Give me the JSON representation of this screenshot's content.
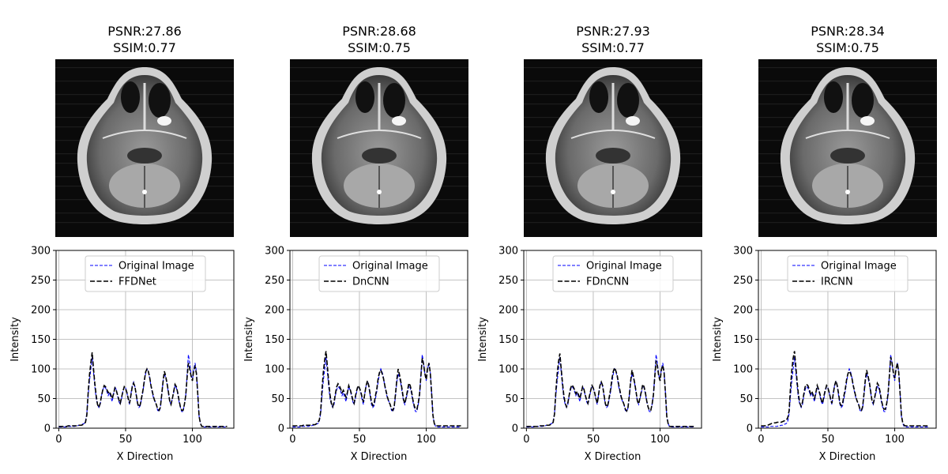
{
  "chart_data": [
    {
      "type": "line",
      "title_line1": "PSNR:27.86",
      "title_line2": "SSIM:0.77",
      "xlabel": "X Direction",
      "ylabel": "Intensity",
      "xlim": [
        -2,
        131
      ],
      "ylim": [
        0,
        300
      ],
      "xticks": [
        "0",
        "50",
        "100"
      ],
      "yticks": [
        "0",
        "50",
        "100",
        "150",
        "200",
        "250",
        "300"
      ],
      "grid": true,
      "legend": "upper center",
      "series": [
        {
          "name": "Original Image",
          "color": "#0000ff",
          "dash": "short",
          "y": [
            2,
            2,
            2,
            2,
            2,
            2,
            2,
            3,
            3,
            3,
            3,
            3,
            3,
            4,
            4,
            5,
            5,
            6,
            7,
            8,
            12,
            25,
            55,
            80,
            100,
            120,
            95,
            70,
            50,
            40,
            35,
            40,
            55,
            65,
            70,
            68,
            62,
            55,
            60,
            52,
            45,
            58,
            70,
            65,
            55,
            45,
            40,
            50,
            62,
            70,
            68,
            60,
            48,
            40,
            58,
            72,
            78,
            70,
            55,
            40,
            35,
            38,
            50,
            62,
            78,
            92,
            100,
            95,
            85,
            70,
            60,
            50,
            45,
            40,
            30,
            28,
            34,
            55,
            78,
            92,
            85,
            75,
            60,
            45,
            40,
            50,
            60,
            72,
            68,
            58,
            45,
            35,
            28,
            28,
            40,
            55,
            90,
            124,
            110,
            90,
            80,
            100,
            110,
            95,
            60,
            20,
            8,
            3,
            2,
            2,
            2,
            2,
            2,
            2,
            2,
            2,
            2,
            2,
            2,
            2,
            2,
            2,
            2,
            2,
            2,
            2,
            2
          ]
        },
        {
          "name": "FFDNet",
          "color": "#000000",
          "dash": "long",
          "y": [
            3,
            3,
            3,
            3,
            3,
            3,
            3,
            4,
            4,
            4,
            4,
            4,
            4,
            4,
            4,
            5,
            5,
            5,
            6,
            7,
            10,
            22,
            60,
            90,
            110,
            128,
            100,
            75,
            55,
            40,
            35,
            42,
            55,
            65,
            72,
            70,
            65,
            60,
            62,
            56,
            50,
            58,
            68,
            64,
            56,
            48,
            42,
            52,
            62,
            70,
            67,
            60,
            50,
            42,
            56,
            70,
            76,
            70,
            56,
            42,
            36,
            40,
            52,
            64,
            80,
            95,
            100,
            96,
            86,
            72,
            62,
            52,
            45,
            40,
            32,
            30,
            35,
            56,
            78,
            96,
            88,
            76,
            62,
            46,
            40,
            50,
            62,
            74,
            70,
            60,
            47,
            36,
            30,
            30,
            40,
            55,
            85,
            110,
            100,
            88,
            80,
            98,
            104,
            92,
            58,
            20,
            8,
            3,
            3,
            3,
            3,
            3,
            3,
            3,
            3,
            3,
            3,
            3,
            3,
            3,
            3,
            3,
            3,
            3,
            3,
            3,
            3
          ]
        }
      ]
    },
    {
      "type": "line",
      "title_line1": "PSNR:28.68",
      "title_line2": "SSIM:0.75",
      "xlabel": "X Direction",
      "ylabel": "Intensity",
      "xlim": [
        -2,
        131
      ],
      "ylim": [
        0,
        300
      ],
      "xticks": [
        "0",
        "50",
        "100"
      ],
      "yticks": [
        "0",
        "50",
        "100",
        "150",
        "200",
        "250",
        "300"
      ],
      "grid": true,
      "legend": "upper center",
      "series": [
        {
          "name": "Original Image",
          "color": "#0000ff",
          "dash": "short",
          "y": [
            2,
            2,
            2,
            2,
            2,
            2,
            2,
            3,
            3,
            3,
            3,
            3,
            3,
            4,
            4,
            5,
            5,
            6,
            7,
            8,
            12,
            25,
            55,
            80,
            100,
            120,
            95,
            70,
            50,
            40,
            35,
            40,
            55,
            65,
            70,
            68,
            62,
            55,
            60,
            52,
            45,
            58,
            70,
            65,
            55,
            45,
            40,
            50,
            62,
            70,
            68,
            60,
            48,
            40,
            58,
            72,
            78,
            70,
            55,
            40,
            35,
            38,
            50,
            62,
            78,
            92,
            100,
            95,
            85,
            70,
            60,
            50,
            45,
            40,
            30,
            28,
            34,
            55,
            78,
            92,
            85,
            75,
            60,
            45,
            40,
            50,
            60,
            72,
            68,
            58,
            45,
            35,
            28,
            28,
            40,
            55,
            90,
            124,
            110,
            90,
            80,
            100,
            110,
            95,
            60,
            20,
            8,
            3,
            2,
            2,
            2,
            2,
            2,
            2,
            2,
            2,
            2,
            2,
            2,
            2,
            2,
            2,
            2,
            2,
            2,
            2,
            2
          ]
        },
        {
          "name": "DnCNN",
          "color": "#000000",
          "dash": "long",
          "y": [
            4,
            4,
            4,
            4,
            4,
            4,
            4,
            4,
            5,
            5,
            5,
            5,
            5,
            5,
            5,
            6,
            6,
            6,
            8,
            10,
            14,
            28,
            65,
            95,
            115,
            130,
            105,
            78,
            56,
            42,
            36,
            44,
            58,
            70,
            75,
            72,
            66,
            60,
            64,
            58,
            52,
            60,
            72,
            66,
            58,
            48,
            42,
            54,
            64,
            72,
            68,
            62,
            52,
            44,
            58,
            72,
            80,
            72,
            58,
            44,
            38,
            42,
            55,
            66,
            84,
            94,
            98,
            92,
            84,
            72,
            62,
            52,
            45,
            40,
            32,
            30,
            36,
            58,
            82,
            100,
            90,
            78,
            64,
            48,
            42,
            52,
            64,
            76,
            72,
            62,
            48,
            38,
            32,
            32,
            42,
            58,
            88,
            118,
            108,
            92,
            82,
            100,
            110,
            94,
            60,
            22,
            8,
            4,
            4,
            4,
            4,
            4,
            4,
            4,
            4,
            4,
            4,
            4,
            4,
            4,
            4,
            4,
            4,
            4,
            4,
            4,
            4
          ]
        }
      ]
    },
    {
      "type": "line",
      "title_line1": "PSNR:27.93",
      "title_line2": "SSIM:0.77",
      "xlabel": "X Direction",
      "ylabel": "Intensity",
      "xlim": [
        -2,
        131
      ],
      "ylim": [
        0,
        300
      ],
      "xticks": [
        "0",
        "50",
        "100"
      ],
      "yticks": [
        "0",
        "50",
        "100",
        "150",
        "200",
        "250",
        "300"
      ],
      "grid": true,
      "legend": "upper center",
      "series": [
        {
          "name": "Original Image",
          "color": "#0000ff",
          "dash": "short",
          "y": [
            2,
            2,
            2,
            2,
            2,
            2,
            2,
            3,
            3,
            3,
            3,
            3,
            3,
            4,
            4,
            5,
            5,
            6,
            7,
            8,
            12,
            25,
            55,
            80,
            100,
            120,
            95,
            70,
            50,
            40,
            35,
            40,
            55,
            65,
            70,
            68,
            62,
            55,
            60,
            52,
            45,
            58,
            70,
            65,
            55,
            45,
            40,
            50,
            62,
            70,
            68,
            60,
            48,
            40,
            58,
            72,
            78,
            70,
            55,
            40,
            35,
            38,
            50,
            62,
            78,
            92,
            100,
            95,
            85,
            70,
            60,
            50,
            45,
            40,
            30,
            28,
            34,
            55,
            78,
            92,
            85,
            75,
            60,
            45,
            40,
            50,
            60,
            72,
            68,
            58,
            45,
            35,
            28,
            28,
            40,
            55,
            90,
            124,
            110,
            90,
            80,
            100,
            110,
            95,
            60,
            20,
            8,
            3,
            2,
            2,
            2,
            2,
            2,
            2,
            2,
            2,
            2,
            2,
            2,
            2,
            2,
            2,
            2,
            2,
            2,
            2,
            2
          ]
        },
        {
          "name": "FDnCNN",
          "color": "#000000",
          "dash": "long",
          "y": [
            3,
            3,
            3,
            3,
            3,
            3,
            3,
            3,
            3,
            3,
            4,
            4,
            4,
            4,
            4,
            5,
            5,
            5,
            6,
            7,
            10,
            24,
            62,
            92,
            112,
            126,
            100,
            76,
            55,
            42,
            36,
            43,
            56,
            67,
            73,
            70,
            65,
            58,
            62,
            56,
            50,
            60,
            70,
            66,
            56,
            48,
            42,
            53,
            63,
            72,
            68,
            60,
            50,
            42,
            57,
            72,
            78,
            72,
            57,
            42,
            36,
            40,
            53,
            66,
            84,
            96,
            102,
            96,
            88,
            74,
            63,
            52,
            46,
            40,
            32,
            29,
            35,
            56,
            80,
            98,
            88,
            76,
            62,
            46,
            41,
            52,
            62,
            74,
            70,
            60,
            46,
            36,
            30,
            30,
            40,
            56,
            86,
            114,
            104,
            88,
            80,
            99,
            106,
            94,
            60,
            20,
            8,
            3,
            3,
            3,
            3,
            3,
            3,
            3,
            3,
            3,
            3,
            3,
            3,
            3,
            3,
            3,
            3,
            3,
            3,
            3,
            3
          ]
        }
      ]
    },
    {
      "type": "line",
      "title_line1": "PSNR:28.34",
      "title_line2": "SSIM:0.75",
      "xlabel": "X Direction",
      "ylabel": "Intensity",
      "xlim": [
        -2,
        131
      ],
      "ylim": [
        0,
        300
      ],
      "xticks": [
        "0",
        "50",
        "100"
      ],
      "yticks": [
        "0",
        "50",
        "100",
        "150",
        "200",
        "250",
        "300"
      ],
      "grid": true,
      "legend": "upper center",
      "series": [
        {
          "name": "Original Image",
          "color": "#0000ff",
          "dash": "short",
          "y": [
            2,
            2,
            2,
            2,
            2,
            2,
            2,
            3,
            3,
            3,
            3,
            3,
            3,
            4,
            4,
            5,
            5,
            6,
            7,
            8,
            12,
            25,
            55,
            80,
            100,
            120,
            95,
            70,
            50,
            40,
            35,
            40,
            55,
            65,
            70,
            68,
            62,
            55,
            60,
            52,
            45,
            58,
            70,
            65,
            55,
            45,
            40,
            50,
            62,
            70,
            68,
            60,
            48,
            40,
            58,
            72,
            78,
            70,
            55,
            40,
            35,
            38,
            50,
            62,
            78,
            92,
            100,
            95,
            85,
            70,
            60,
            50,
            45,
            40,
            30,
            28,
            34,
            55,
            78,
            92,
            85,
            75,
            60,
            45,
            40,
            50,
            60,
            72,
            68,
            58,
            45,
            35,
            28,
            28,
            40,
            55,
            90,
            124,
            110,
            90,
            80,
            100,
            110,
            95,
            60,
            20,
            8,
            3,
            2,
            2,
            2,
            2,
            2,
            2,
            2,
            2,
            2,
            2,
            2,
            2,
            2,
            2,
            2,
            2,
            2,
            2,
            2
          ]
        },
        {
          "name": "IRCNN",
          "color": "#000000",
          "dash": "long",
          "y": [
            4,
            4,
            4,
            4,
            5,
            5,
            6,
            7,
            8,
            8,
            9,
            9,
            10,
            10,
            10,
            10,
            11,
            12,
            13,
            14,
            18,
            30,
            68,
            98,
            118,
            130,
            104,
            78,
            56,
            42,
            37,
            44,
            58,
            70,
            74,
            72,
            66,
            58,
            62,
            56,
            50,
            60,
            72,
            66,
            58,
            48,
            42,
            54,
            64,
            72,
            68,
            60,
            50,
            42,
            58,
            72,
            80,
            72,
            58,
            42,
            38,
            42,
            55,
            66,
            82,
            92,
            96,
            92,
            84,
            72,
            62,
            52,
            45,
            40,
            32,
            30,
            36,
            58,
            82,
            98,
            88,
            78,
            62,
            46,
            42,
            52,
            64,
            76,
            72,
            62,
            48,
            38,
            32,
            32,
            42,
            58,
            88,
            120,
            110,
            94,
            84,
            100,
            110,
            94,
            60,
            22,
            9,
            5,
            4,
            4,
            4,
            4,
            4,
            4,
            4,
            4,
            4,
            4,
            4,
            4,
            4,
            4,
            4,
            4,
            4,
            4,
            4
          ]
        }
      ]
    }
  ]
}
